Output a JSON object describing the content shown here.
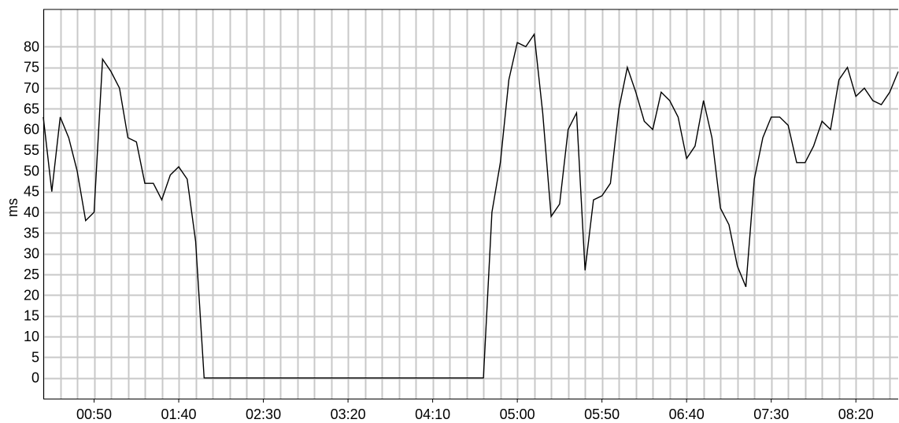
{
  "chart_data": {
    "type": "line",
    "title": "",
    "xlabel": "",
    "ylabel": "ms",
    "grid": true,
    "legend": "none",
    "ylim": [
      -5,
      89
    ],
    "xlim_seconds": [
      20,
      525
    ],
    "yticks": [
      0,
      5,
      10,
      15,
      20,
      25,
      30,
      35,
      40,
      45,
      50,
      55,
      60,
      65,
      70,
      75,
      80
    ],
    "xticks": [
      "00:50",
      "01:40",
      "02:30",
      "03:20",
      "04:10",
      "05:00",
      "05:50",
      "06:40",
      "07:30",
      "08:20"
    ],
    "series": [
      {
        "color": "#000000",
        "x": [
          "00:20",
          "00:25",
          "00:30",
          "00:35",
          "00:40",
          "00:45",
          "00:50",
          "00:55",
          "01:00",
          "01:05",
          "01:10",
          "01:15",
          "01:20",
          "01:25",
          "01:30",
          "01:35",
          "01:40",
          "01:45",
          "01:50",
          "01:55",
          "04:40",
          "04:45",
          "04:50",
          "04:55",
          "05:00",
          "05:05",
          "05:10",
          "05:15",
          "05:20",
          "05:25",
          "05:30",
          "05:35",
          "05:40",
          "05:45",
          "05:50",
          "05:55",
          "06:00",
          "06:05",
          "06:10",
          "06:15",
          "06:20",
          "06:25",
          "06:30",
          "06:35",
          "06:40",
          "06:45",
          "06:50",
          "06:55",
          "07:00",
          "07:05",
          "07:10",
          "07:15",
          "07:20",
          "07:25",
          "07:30",
          "07:35",
          "07:40",
          "07:45",
          "07:50",
          "07:55",
          "08:00",
          "08:05",
          "08:10",
          "08:15",
          "08:20",
          "08:25",
          "08:30",
          "08:35",
          "08:40",
          "08:45"
        ],
        "y": [
          63,
          45,
          63,
          58,
          50,
          38,
          40,
          77,
          74,
          70,
          58,
          57,
          47,
          47,
          43,
          49,
          51,
          48,
          33,
          0,
          0,
          40,
          52,
          72,
          81,
          80,
          83,
          64,
          39,
          42,
          60,
          64,
          26,
          43,
          44,
          47,
          65,
          75,
          69,
          62,
          60,
          69,
          67,
          63,
          53,
          56,
          67,
          58,
          41,
          37,
          27,
          22,
          48,
          58,
          63,
          63,
          61,
          52,
          52,
          56,
          62,
          60,
          72,
          75,
          68,
          70,
          67,
          66,
          69,
          74
        ]
      }
    ]
  }
}
